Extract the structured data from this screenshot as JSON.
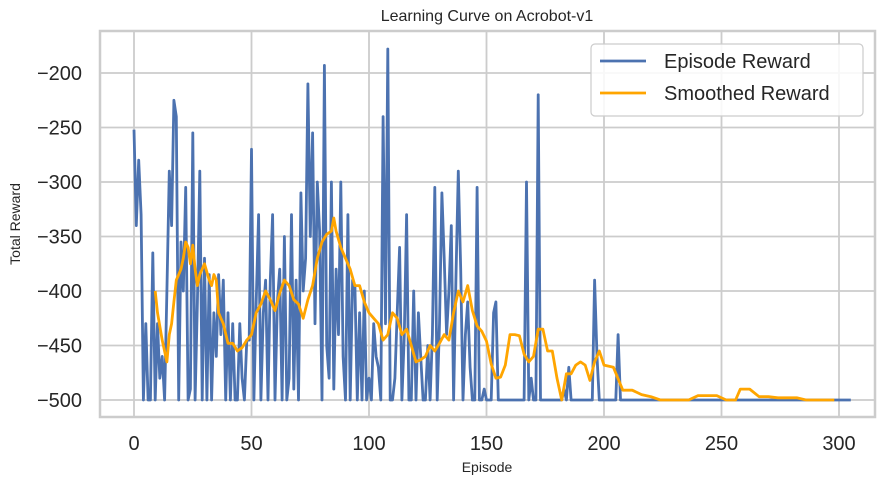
{
  "chart_data": {
    "type": "line",
    "title": "Learning Curve on Acrobot-v1",
    "xlabel": "Episode",
    "ylabel": "Total Reward",
    "xlim": [
      -8,
      309
    ],
    "ylim": [
      -516,
      -177
    ],
    "xticks": [
      0,
      50,
      100,
      150,
      200,
      250,
      300
    ],
    "yticks": [
      -500,
      -450,
      -400,
      -350,
      -300,
      -250,
      -200
    ],
    "xtick_labels": [
      "0",
      "50",
      "100",
      "150",
      "200",
      "250",
      "300"
    ],
    "ytick_labels": [
      "−500",
      "−450",
      "−400",
      "−350",
      "−300",
      "−250",
      "−200"
    ],
    "grid": true,
    "legend_position": "upper right",
    "series": [
      {
        "name": "Episode Reward",
        "color": "#4c72b0",
        "x_start": 0,
        "values": [
          -252,
          -340,
          -280,
          -330,
          -500,
          -430,
          -500,
          -500,
          -365,
          -500,
          -430,
          -480,
          -460,
          -500,
          -400,
          -290,
          -340,
          -225,
          -240,
          -500,
          -355,
          -400,
          -305,
          -500,
          -490,
          -255,
          -500,
          -410,
          -290,
          -500,
          -370,
          -500,
          -385,
          -500,
          -420,
          -460,
          -385,
          -440,
          -390,
          -500,
          -420,
          -500,
          -430,
          -500,
          -500,
          -430,
          -480,
          -500,
          -445,
          -445,
          -270,
          -500,
          -410,
          -330,
          -500,
          -420,
          -390,
          -500,
          -390,
          -330,
          -500,
          -410,
          -380,
          -500,
          -350,
          -500,
          -480,
          -330,
          -490,
          -390,
          -500,
          -310,
          -400,
          -370,
          -210,
          -350,
          -255,
          -430,
          -300,
          -345,
          -500,
          -193,
          -450,
          -480,
          -300,
          -490,
          -380,
          -440,
          -300,
          -460,
          -500,
          -330,
          -500,
          -390,
          -395,
          -500,
          -420,
          -500,
          -400,
          -500,
          -480,
          -500,
          -430,
          -460,
          -470,
          -500,
          -240,
          -430,
          -178,
          -500,
          -500,
          -480,
          -420,
          -360,
          -500,
          -440,
          -330,
          -500,
          -500,
          -400,
          -500,
          -420,
          -460,
          -500,
          -500,
          -450,
          -500,
          -440,
          -305,
          -500,
          -430,
          -310,
          -370,
          -440,
          -400,
          -340,
          -500,
          -390,
          -290,
          -380,
          -500,
          -440,
          -410,
          -470,
          -500,
          -500,
          -305,
          -500,
          -500,
          -490,
          -500,
          -500,
          -500,
          -420,
          -410,
          -500,
          -500,
          -500,
          -500,
          -500,
          -500,
          -500,
          -500,
          -500,
          -500,
          -500,
          -500,
          -300,
          -500,
          -480,
          -500,
          -500,
          -220,
          -500,
          -500,
          -500,
          -500,
          -500,
          -500,
          -500,
          -500,
          -500,
          -500,
          -490,
          -500,
          -470,
          -500,
          -500,
          -500,
          -500,
          -500,
          -500,
          -500,
          -500,
          -500,
          -500,
          -390,
          -460,
          -500,
          -500,
          -500,
          -500,
          -500,
          -500,
          -500,
          -500,
          -440,
          -500,
          -500,
          -500,
          -500,
          -500,
          -500,
          -500,
          -500,
          -500,
          -500,
          -500,
          -500,
          -500,
          -500,
          -500,
          -500,
          -500,
          -500,
          -500,
          -500,
          -500,
          -500,
          -500,
          -500,
          -500,
          -500,
          -500,
          -500,
          -500,
          -500,
          -500,
          -500,
          -500,
          -500,
          -500,
          -500,
          -500,
          -500,
          -500,
          -500,
          -500,
          -500,
          -500,
          -500,
          -500,
          -500,
          -500,
          -500,
          -500,
          -500,
          -500,
          -500,
          -500,
          -500,
          -500,
          -500,
          -500,
          -500,
          -500,
          -500,
          -500,
          -500,
          -500,
          -500,
          -500,
          -500,
          -500,
          -500,
          -500,
          -500,
          -500,
          -500,
          -500,
          -500,
          -500,
          -500,
          -500,
          -500,
          -500,
          -500,
          -500,
          -500,
          -500,
          -500,
          -500,
          -500,
          -500,
          -500,
          -500,
          -500,
          -500,
          -500,
          -500,
          -500,
          -500,
          -500,
          -500,
          -500,
          -500
        ]
      },
      {
        "name": "Smoothed Reward",
        "color": "#ffa500",
        "x": [
          9,
          10,
          12,
          14,
          15,
          16,
          17,
          18,
          19,
          20,
          21,
          22,
          23,
          24,
          25,
          26,
          27,
          28,
          30,
          32,
          33,
          34,
          35,
          36,
          37,
          38,
          40,
          42,
          44,
          46,
          48,
          50,
          52,
          54,
          56,
          58,
          60,
          62,
          64,
          66,
          68,
          70,
          72,
          74,
          76,
          78,
          80,
          82,
          84,
          85,
          86,
          88,
          90,
          92,
          94,
          96,
          98,
          100,
          102,
          104,
          106,
          108,
          110,
          112,
          114,
          116,
          118,
          120,
          122,
          124,
          126,
          128,
          130,
          132,
          134,
          136,
          138,
          140,
          142,
          144,
          146,
          148,
          150,
          152,
          154,
          156,
          158,
          160,
          162,
          164,
          166,
          168,
          170,
          172,
          174,
          176,
          178,
          180,
          182,
          184,
          186,
          188,
          190,
          192,
          194,
          196,
          198,
          200,
          204,
          208,
          212,
          216,
          220,
          224,
          228,
          232,
          236,
          240,
          244,
          248,
          252,
          256,
          258,
          262,
          266,
          270,
          274,
          278,
          282,
          286,
          290,
          294,
          298
        ],
        "values": [
          -400,
          -420,
          -445,
          -465,
          -440,
          -430,
          -410,
          -390,
          -385,
          -380,
          -370,
          -355,
          -360,
          -375,
          -358,
          -380,
          -395,
          -385,
          -375,
          -390,
          -395,
          -385,
          -390,
          -420,
          -425,
          -430,
          -448,
          -448,
          -455,
          -452,
          -445,
          -440,
          -420,
          -412,
          -400,
          -408,
          -418,
          -402,
          -390,
          -395,
          -408,
          -412,
          -425,
          -408,
          -395,
          -370,
          -355,
          -348,
          -345,
          -333,
          -345,
          -360,
          -370,
          -380,
          -395,
          -395,
          -410,
          -420,
          -425,
          -430,
          -445,
          -440,
          -420,
          -425,
          -440,
          -435,
          -450,
          -465,
          -463,
          -460,
          -450,
          -455,
          -448,
          -440,
          -445,
          -420,
          -400,
          -410,
          -395,
          -418,
          -432,
          -437,
          -446,
          -467,
          -480,
          -479,
          -468,
          -440,
          -440,
          -441,
          -458,
          -465,
          -460,
          -435,
          -435,
          -455,
          -455,
          -480,
          -500,
          -476,
          -476,
          -468,
          -465,
          -468,
          -482,
          -465,
          -455,
          -468,
          -470,
          -491,
          -491,
          -495,
          -497,
          -500,
          -500,
          -500,
          -500,
          -496,
          -496,
          -496,
          -500,
          -500,
          -490,
          -490,
          -497,
          -497,
          -498,
          -498,
          -498,
          -500,
          -500,
          -500,
          -500
        ]
      }
    ]
  }
}
